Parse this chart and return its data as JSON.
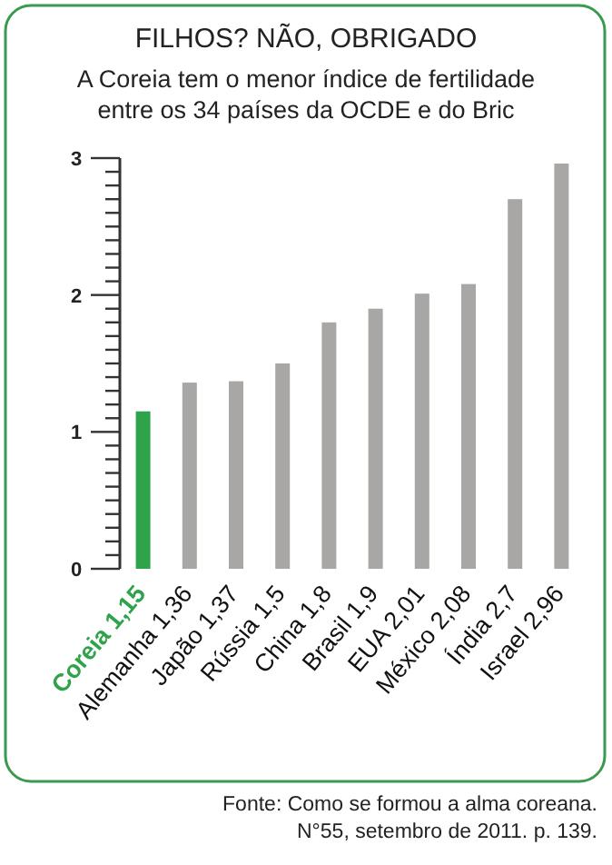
{
  "chart_data": {
    "type": "bar",
    "title": "FILHOS? NÃO, OBRIGADO",
    "subtitle": "A Coreia tem o menor índice de fertilidade entre os 34 países da OCDE e do Bric",
    "categories": [
      "Coreia 1,15",
      "Alemanha 1,36",
      "Japão 1,37",
      "Rússia 1,5",
      "China 1,8",
      "Brasil 1,9",
      "EUA 2,01",
      "México 2,08",
      "Índia 2,7",
      "Israel 2,96"
    ],
    "values": [
      1.15,
      1.36,
      1.37,
      1.5,
      1.8,
      1.9,
      2.01,
      2.08,
      2.7,
      2.96
    ],
    "colors": [
      "#2ea34a",
      "#a9a7a6",
      "#a9a7a6",
      "#a9a7a6",
      "#a9a7a6",
      "#a9a7a6",
      "#a9a7a6",
      "#a9a7a6",
      "#a9a7a6",
      "#a9a7a6"
    ],
    "ylim": [
      0,
      3
    ],
    "yticks": [
      0,
      {
        "value": 0.1,
        "label": null
      },
      {
        "value": 0.2,
        "label": null
      },
      {
        "value": 0.3,
        "label": null
      },
      {
        "value": 0.4,
        "label": null
      },
      {
        "value": 0.5,
        "label": null
      },
      {
        "value": 0.6,
        "label": null
      },
      {
        "value": 0.7,
        "label": null
      },
      {
        "value": 0.8,
        "label": null
      },
      {
        "value": 0.9,
        "label": null
      },
      1,
      {
        "value": 1.1,
        "label": null
      },
      {
        "value": 1.2,
        "label": null
      },
      {
        "value": 1.3,
        "label": null
      },
      {
        "value": 1.4,
        "label": null
      },
      {
        "value": 1.5,
        "label": null
      },
      {
        "value": 1.6,
        "label": null
      },
      {
        "value": 1.7,
        "label": null
      },
      {
        "value": 1.8,
        "label": null
      },
      {
        "value": 1.9,
        "label": null
      },
      2,
      {
        "value": 2.1,
        "label": null
      },
      {
        "value": 2.2,
        "label": null
      },
      {
        "value": 2.3,
        "label": null
      },
      {
        "value": 2.4,
        "label": null
      },
      {
        "value": 2.5,
        "label": null
      },
      {
        "value": 2.6,
        "label": null
      },
      {
        "value": 2.7,
        "label": null
      },
      {
        "value": 2.8,
        "label": null
      },
      {
        "value": 2.9,
        "label": null
      },
      3
    ],
    "annotations": [
      "Fonte: Como se formou a alma coreana. N°55, setembro de 2011. p. 139."
    ]
  }
}
